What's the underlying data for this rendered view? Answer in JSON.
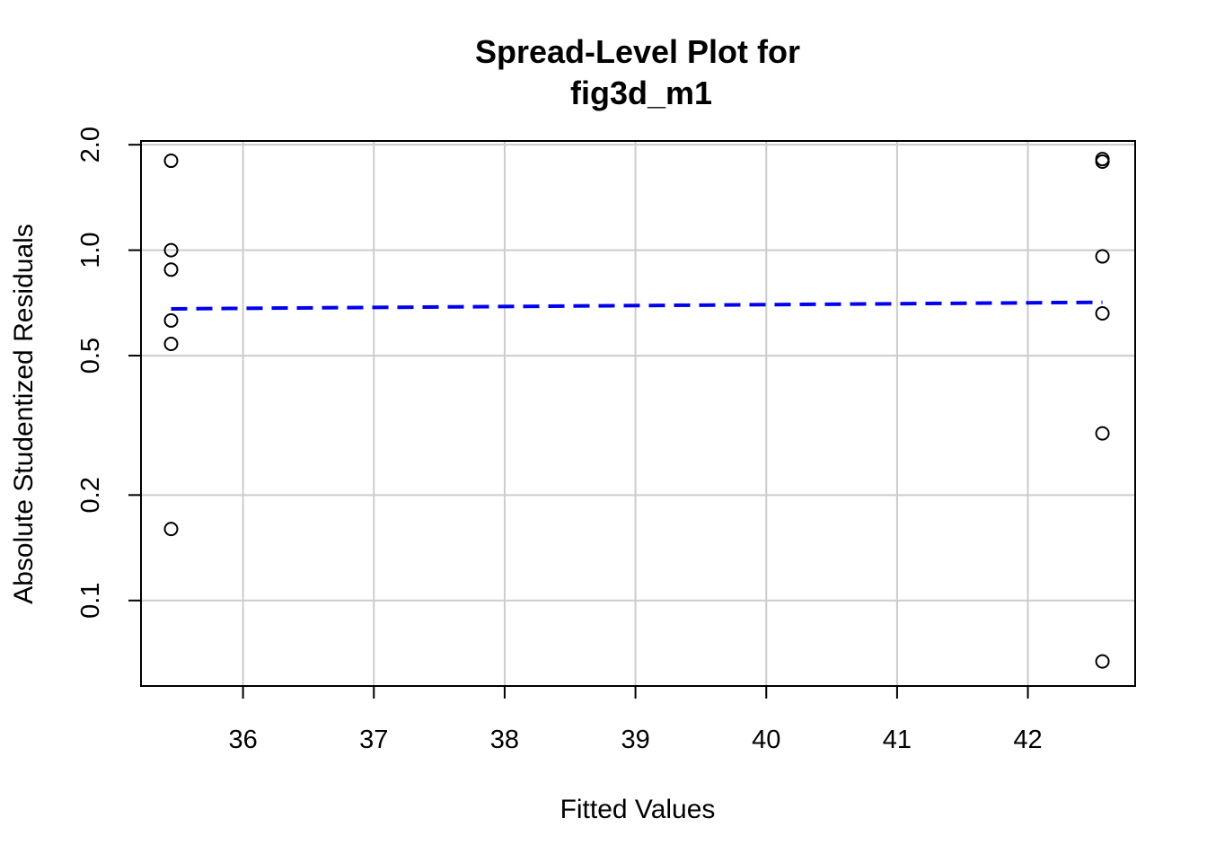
{
  "chart_data": {
    "type": "scatter",
    "title_lines": [
      "Spread-Level Plot for",
      "fig3d_m1"
    ],
    "xlabel": "Fitted Values",
    "ylabel": "Absolute Studentized Residuals",
    "y_scale": "log",
    "grid": true,
    "xlim": [
      35.22,
      42.82
    ],
    "ylim": [
      0.057,
      2.05
    ],
    "x_ticks": [
      36,
      37,
      38,
      39,
      40,
      41,
      42
    ],
    "y_ticks": [
      0.1,
      0.2,
      0.5,
      1.0,
      2.0
    ],
    "y_tick_labels": [
      "0.1",
      "0.2",
      "0.5",
      "1.0",
      "2.0"
    ],
    "points": [
      {
        "x": 35.45,
        "y": 1.8
      },
      {
        "x": 35.45,
        "y": 1.0
      },
      {
        "x": 35.45,
        "y": 0.88
      },
      {
        "x": 35.45,
        "y": 0.63
      },
      {
        "x": 35.45,
        "y": 0.54
      },
      {
        "x": 35.45,
        "y": 0.16
      },
      {
        "x": 42.57,
        "y": 1.82
      },
      {
        "x": 42.57,
        "y": 1.79
      },
      {
        "x": 42.57,
        "y": 0.96
      },
      {
        "x": 42.57,
        "y": 0.66
      },
      {
        "x": 42.57,
        "y": 0.3
      },
      {
        "x": 42.57,
        "y": 0.067
      }
    ],
    "trend_line": {
      "x": [
        35.45,
        42.57
      ],
      "y": [
        0.68,
        0.71
      ]
    },
    "colors": {
      "points": "#000000",
      "trend": "#0000ee",
      "grid": "#cccccc"
    }
  }
}
